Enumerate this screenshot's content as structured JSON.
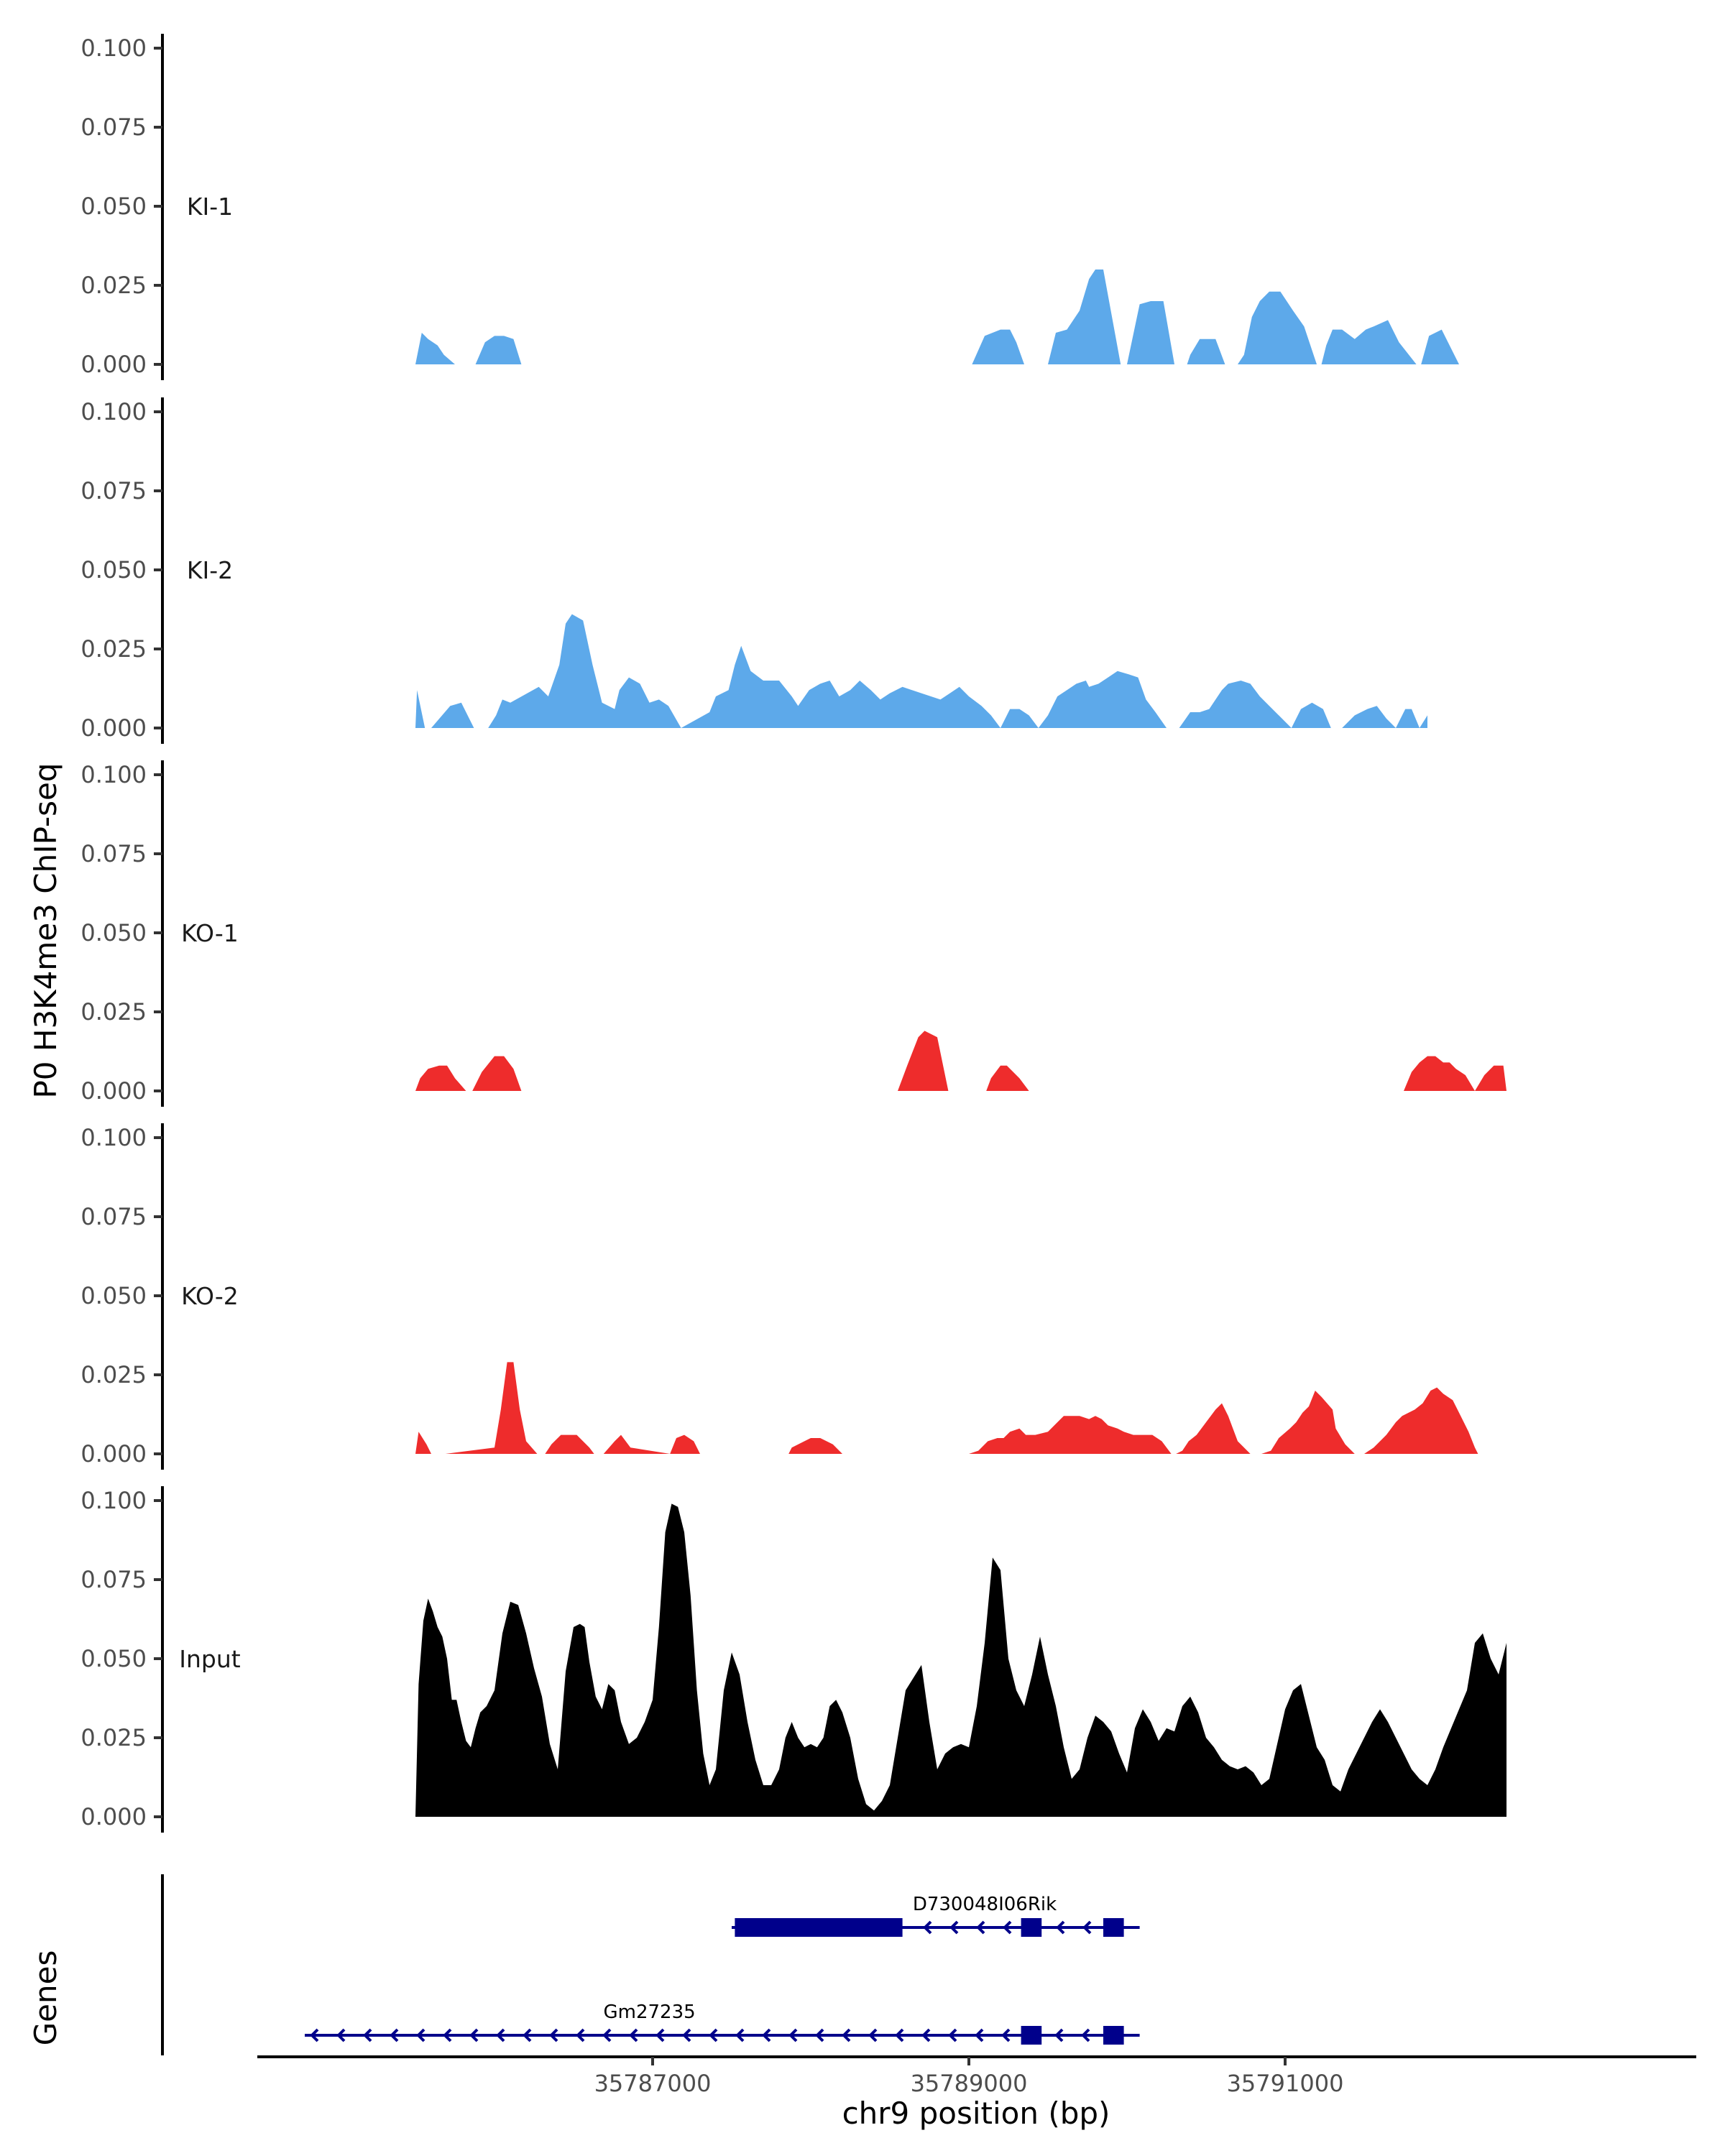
{
  "chart_data": {
    "type": "area",
    "title": "",
    "ylabel": "P0 H3K4me3 ChIP-seq",
    "xlabel": "chr9 position (bp)",
    "genes_label": "Genes",
    "ylim": [
      0,
      0.1
    ],
    "y_ticks": [
      0.0,
      0.025,
      0.05,
      0.075,
      0.1
    ],
    "y_tick_labels": [
      "0.000",
      "0.025",
      "0.050",
      "0.075",
      "0.100"
    ],
    "xlim": [
      35784500,
      35793600
    ],
    "x_ticks": [
      35787000,
      35789000,
      35791000
    ],
    "x_tick_labels": [
      "35787000",
      "35789000",
      "35791000"
    ],
    "colors": {
      "KI": "#5DA9EA",
      "KO": "#EE2C2C",
      "Input": "#000000",
      "gene": "#00008B"
    },
    "tracks": [
      {
        "name": "KI-1",
        "color": "#5DA9EA",
        "x": [
          35785500,
          35785540,
          35785580,
          35785640,
          35785680,
          35785750,
          35785880,
          35785940,
          35786000,
          35786060,
          35786120,
          35786170,
          35789020,
          35789100,
          35789200,
          35789260,
          35789300,
          35789350,
          35789500,
          35789550,
          35789620,
          35789700,
          35789760,
          35789800,
          35789850,
          35789960,
          35790000,
          35790080,
          35790150,
          35790230,
          35790300,
          35790380,
          35790400,
          35790460,
          35790560,
          35790620,
          35790700,
          35790740,
          35790790,
          35790840,
          35790900,
          35790970,
          35791050,
          35791120,
          35791200,
          35791230,
          35791260,
          35791300,
          35791360,
          35791440,
          35791510,
          35791560,
          35791650,
          35791720,
          35791830,
          35791860,
          35791910,
          35791990,
          35792040,
          35792100
        ],
        "y": [
          0,
          0.01,
          0.008,
          0.006,
          0.003,
          0,
          0,
          0.007,
          0.009,
          0.009,
          0.008,
          0,
          0,
          0.009,
          0.011,
          0.011,
          0.007,
          0,
          0,
          0.01,
          0.011,
          0.017,
          0.027,
          0.03,
          0.03,
          0,
          0,
          0.019,
          0.02,
          0.02,
          0,
          0,
          0.003,
          0.008,
          0.008,
          0,
          0,
          0.003,
          0.015,
          0.02,
          0.023,
          0.023,
          0.017,
          0.012,
          0,
          0,
          0.006,
          0.011,
          0.011,
          0.008,
          0.011,
          0.012,
          0.014,
          0.007,
          0,
          0,
          0.009,
          0.011,
          0.006,
          0
        ]
      },
      {
        "name": "KI-2",
        "color": "#5DA9EA",
        "x": [
          35785500,
          35785510,
          35785560,
          35785600,
          35785720,
          35785790,
          35785870,
          35785960,
          35786010,
          35786050,
          35786100,
          35786280,
          35786340,
          35786410,
          35786450,
          35786490,
          35786560,
          35786620,
          35786680,
          35786760,
          35786790,
          35786850,
          35786920,
          35786980,
          35787040,
          35787100,
          35787180,
          35787360,
          35787400,
          35787480,
          35787520,
          35787560,
          35787620,
          35787700,
          35787800,
          35787880,
          35787920,
          35787990,
          35788060,
          35788120,
          35788180,
          35788250,
          35788310,
          35788380,
          35788440,
          35788500,
          35788580,
          35788640,
          35788700,
          35788760,
          35788820,
          35788880,
          35788940,
          35789000,
          35789080,
          35789140,
          35789200,
          35789260,
          35789320,
          35789380,
          35789440,
          35789500,
          35789560,
          35789620,
          35789680,
          35789740,
          35789760,
          35789820,
          35789880,
          35789940,
          35790010,
          35790070,
          35790120,
          35790180,
          35790250,
          35790330,
          35790400,
          35790460,
          35790520,
          35790600,
          35790640,
          35790720,
          35790780,
          35790840,
          35790900,
          35790960,
          35791040,
          35791100,
          35791170,
          35791240,
          35791290,
          35791360,
          35791440,
          35791520,
          35791580,
          35791640,
          35791700,
          35791760,
          35791800,
          35791850,
          35791900
        ],
        "y": [
          0,
          0.012,
          0,
          0,
          0.007,
          0.008,
          0,
          0,
          0.004,
          0.009,
          0.008,
          0.013,
          0.01,
          0.02,
          0.033,
          0.036,
          0.034,
          0.02,
          0.008,
          0.006,
          0.012,
          0.016,
          0.014,
          0.008,
          0.009,
          0.007,
          0,
          0.005,
          0.01,
          0.012,
          0.02,
          0.026,
          0.018,
          0.015,
          0.015,
          0.01,
          0.007,
          0.012,
          0.014,
          0.015,
          0.01,
          0.012,
          0.015,
          0.012,
          0.009,
          0.011,
          0.013,
          0.012,
          0.011,
          0.01,
          0.009,
          0.011,
          0.013,
          0.01,
          0.007,
          0.004,
          0,
          0.006,
          0.006,
          0.004,
          0,
          0.004,
          0.01,
          0.012,
          0.014,
          0.015,
          0.013,
          0.014,
          0.016,
          0.018,
          0.017,
          0.016,
          0.009,
          0.005,
          0,
          0,
          0.005,
          0.005,
          0.006,
          0.012,
          0.014,
          0.015,
          0.014,
          0.01,
          0.007,
          0.004,
          0,
          0.006,
          0.008,
          0.006,
          0,
          0,
          0.004,
          0.006,
          0.007,
          0.003,
          0,
          0.006,
          0.006,
          0,
          0.004
        ]
      },
      {
        "name": "KO-1",
        "color": "#EE2C2C",
        "x": [
          35785500,
          35785530,
          35785580,
          35785650,
          35785700,
          35785750,
          35785820,
          35785860,
          35785920,
          35786000,
          35786060,
          35786120,
          35786170,
          35788550,
          35788580,
          35788610,
          35788680,
          35788720,
          35788800,
          35788870,
          35789110,
          35789140,
          35789200,
          35789240,
          35789320,
          35789380,
          35789450,
          35791750,
          35791800,
          35791850,
          35791900,
          35791950,
          35792000,
          35792040,
          35792080,
          35792140,
          35792200,
          35792260,
          35792320,
          35792380,
          35792400
        ],
        "y": [
          0,
          0.004,
          0.007,
          0.008,
          0.008,
          0.004,
          0,
          0,
          0.006,
          0.011,
          0.011,
          0.007,
          0,
          0,
          0.004,
          0.008,
          0.017,
          0.019,
          0.017,
          0,
          0,
          0.004,
          0.008,
          0.008,
          0.004,
          0,
          0,
          0,
          0.006,
          0.009,
          0.011,
          0.011,
          0.009,
          0.009,
          0.007,
          0.005,
          0,
          0.005,
          0.008,
          0.008,
          0
        ]
      },
      {
        "name": "KO-2",
        "color": "#EE2C2C",
        "x": [
          35785500,
          35785520,
          35785570,
          35785600,
          35785660,
          35785690,
          35786000,
          35786040,
          35786080,
          35786120,
          35786160,
          35786200,
          35786270,
          35786320,
          35786360,
          35786420,
          35786520,
          35786600,
          35786630,
          35786690,
          35786760,
          35786800,
          35786860,
          35787110,
          35787150,
          35787200,
          35787260,
          35787300,
          35787360,
          35787860,
          35787880,
          35787960,
          35788000,
          35788060,
          35788140,
          35788200,
          35788240,
          35789000,
          35789060,
          35789120,
          35789180,
          35789220,
          35789260,
          35789320,
          35789360,
          35789420,
          35789500,
          35789560,
          35789600,
          35789700,
          35789760,
          35789800,
          35789840,
          35789880,
          35789940,
          35789980,
          35790040,
          35790100,
          35790160,
          35790220,
          35790280,
          35790310,
          35790350,
          35790390,
          35790440,
          35790500,
          35790560,
          35790600,
          35790640,
          35790700,
          35790780,
          35790820,
          35790850,
          35790910,
          35790960,
          35791030,
          35791070,
          35791110,
          35791150,
          35791190,
          35791230,
          35791300,
          35791320,
          35791380,
          35791440,
          35791500,
          35791560,
          35791640,
          35791700,
          35791740,
          35791820,
          35791870,
          35791920,
          35791960,
          35792000,
          35792060,
          35792100,
          35792160,
          35792200,
          35792220
        ],
        "y": [
          0,
          0.007,
          0.003,
          0,
          0,
          0,
          0.002,
          0.014,
          0.029,
          0.029,
          0.014,
          0.004,
          0,
          0,
          0.003,
          0.006,
          0.006,
          0.002,
          0,
          0,
          0.004,
          0.006,
          0.002,
          0,
          0.005,
          0.006,
          0.004,
          0,
          0,
          0,
          0.002,
          0.004,
          0.005,
          0.005,
          0.003,
          0,
          0,
          0,
          0.001,
          0.004,
          0.005,
          0.005,
          0.007,
          0.008,
          0.006,
          0.006,
          0.007,
          0.01,
          0.012,
          0.012,
          0.011,
          0.012,
          0.011,
          0.009,
          0.008,
          0.007,
          0.006,
          0.006,
          0.006,
          0.004,
          0,
          0,
          0.001,
          0.004,
          0.006,
          0.01,
          0.014,
          0.016,
          0.012,
          0.004,
          0,
          0,
          0,
          0.001,
          0.005,
          0.008,
          0.01,
          0.013,
          0.015,
          0.02,
          0.018,
          0.014,
          0.008,
          0.003,
          0,
          0,
          0.002,
          0.006,
          0.01,
          0.012,
          0.014,
          0.016,
          0.02,
          0.021,
          0.019,
          0.017,
          0.013,
          0.007,
          0.002,
          0
        ]
      },
      {
        "name": "Input",
        "color": "#000000",
        "x": [
          35785500,
          35785520,
          35785550,
          35785580,
          35785610,
          35785640,
          35785670,
          35785700,
          35785730,
          35785760,
          35785790,
          35785820,
          35785850,
          35785880,
          35785910,
          35785950,
          35786000,
          35786050,
          35786100,
          35786150,
          35786200,
          35786250,
          35786300,
          35786350,
          35786400,
          35786450,
          35786500,
          35786540,
          35786570,
          35786600,
          35786640,
          35786680,
          35786720,
          35786760,
          35786800,
          35786850,
          35786900,
          35786950,
          35787000,
          35787040,
          35787080,
          35787120,
          35787160,
          35787200,
          35787240,
          35787280,
          35787320,
          35787360,
          35787400,
          35787450,
          35787500,
          35787550,
          35787600,
          35787650,
          35787700,
          35787750,
          35787800,
          35787840,
          35787880,
          35787920,
          35787960,
          35788000,
          35788040,
          35788080,
          35788120,
          35788160,
          35788200,
          35788250,
          35788300,
          35788350,
          35788400,
          35788450,
          35788500,
          35788550,
          35788600,
          35788650,
          35788700,
          35788750,
          35788800,
          35788850,
          35788900,
          35788950,
          35789000,
          35789050,
          35789100,
          35789150,
          35789200,
          35789250,
          35789300,
          35789350,
          35789400,
          35789450,
          35789500,
          35789550,
          35789600,
          35789650,
          35789700,
          35789750,
          35789800,
          35789850,
          35789900,
          35789950,
          35790000,
          35790050,
          35790100,
          35790150,
          35790200,
          35790250,
          35790300,
          35790350,
          35790400,
          35790450,
          35790500,
          35790550,
          35790600,
          35790650,
          35790700,
          35790750,
          35790800,
          35790850,
          35790900,
          35790950,
          35791000,
          35791050,
          35791100,
          35791150,
          35791200,
          35791250,
          35791300,
          35791350,
          35791400,
          35791450,
          35791500,
          35791550,
          35791600,
          35791650,
          35791700,
          35791750,
          35791800,
          35791850,
          35791900,
          35791950,
          35792000,
          35792050,
          35792100,
          35792150,
          35792200,
          35792250,
          35792300,
          35792350,
          35792400
        ],
        "y": [
          0,
          0.042,
          0.062,
          0.069,
          0.065,
          0.06,
          0.057,
          0.05,
          0.037,
          0.037,
          0.03,
          0.024,
          0.022,
          0.028,
          0.033,
          0.035,
          0.04,
          0.058,
          0.068,
          0.067,
          0.058,
          0.047,
          0.038,
          0.023,
          0.015,
          0.046,
          0.06,
          0.061,
          0.06,
          0.049,
          0.038,
          0.034,
          0.042,
          0.04,
          0.03,
          0.023,
          0.025,
          0.03,
          0.037,
          0.06,
          0.09,
          0.099,
          0.098,
          0.09,
          0.07,
          0.04,
          0.02,
          0.01,
          0.015,
          0.04,
          0.052,
          0.045,
          0.03,
          0.018,
          0.01,
          0.01,
          0.015,
          0.025,
          0.03,
          0.025,
          0.022,
          0.023,
          0.022,
          0.025,
          0.035,
          0.037,
          0.033,
          0.025,
          0.012,
          0.004,
          0.002,
          0.005,
          0.01,
          0.025,
          0.04,
          0.044,
          0.048,
          0.03,
          0.015,
          0.02,
          0.022,
          0.023,
          0.022,
          0.035,
          0.055,
          0.082,
          0.078,
          0.05,
          0.04,
          0.035,
          0.045,
          0.057,
          0.045,
          0.035,
          0.022,
          0.012,
          0.015,
          0.025,
          0.032,
          0.03,
          0.027,
          0.02,
          0.014,
          0.028,
          0.034,
          0.03,
          0.024,
          0.028,
          0.027,
          0.035,
          0.038,
          0.033,
          0.025,
          0.022,
          0.018,
          0.016,
          0.015,
          0.016,
          0.014,
          0.01,
          0.012,
          0.023,
          0.034,
          0.04,
          0.042,
          0.032,
          0.022,
          0.018,
          0.01,
          0.008,
          0.015,
          0.02,
          0.025,
          0.03,
          0.034,
          0.03,
          0.025,
          0.02,
          0.015,
          0.012,
          0.01,
          0.015,
          0.022,
          0.028,
          0.034,
          0.04,
          0.055,
          0.058,
          0.05,
          0.045,
          0.055
        ]
      }
    ],
    "genes": [
      {
        "name": "D730048I06Rik",
        "start": 35787500,
        "end": 35790080,
        "strand": "-",
        "exons": [
          [
            35787520,
            35788580,
            "thick"
          ],
          [
            35789330,
            35789460,
            "thick"
          ],
          [
            35789850,
            35789980,
            "thick"
          ]
        ]
      },
      {
        "name": "Gm27235",
        "start": 35784800,
        "end": 35790080,
        "strand": "-",
        "exons": [
          [
            35789330,
            35789460,
            "thick"
          ],
          [
            35789850,
            35789980,
            "thick"
          ]
        ]
      }
    ]
  }
}
